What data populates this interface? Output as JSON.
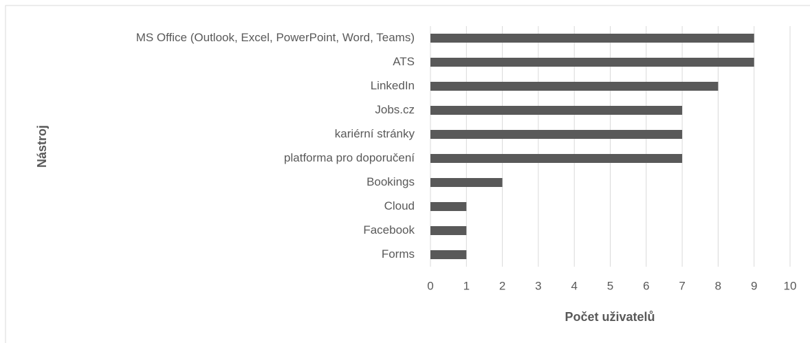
{
  "chart_data": {
    "type": "hbar",
    "categories": [
      "MS Office (Outlook, Excel, PowerPoint, Word, Teams)",
      "ATS",
      "LinkedIn",
      "Jobs.cz",
      "kariérní stránky",
      "platforma pro doporučení",
      "Bookings",
      "Cloud",
      "Facebook",
      "Forms"
    ],
    "values": [
      9,
      9,
      8,
      7,
      7,
      7,
      2,
      1,
      1,
      1
    ],
    "color": "#595959",
    "xlabel": "Počet uživatelů",
    "ylabel": "Nástroj",
    "xlim": [
      0,
      10
    ],
    "xticks": [
      0,
      1,
      2,
      3,
      4,
      5,
      6,
      7,
      8,
      9,
      10
    ],
    "grid": true
  }
}
